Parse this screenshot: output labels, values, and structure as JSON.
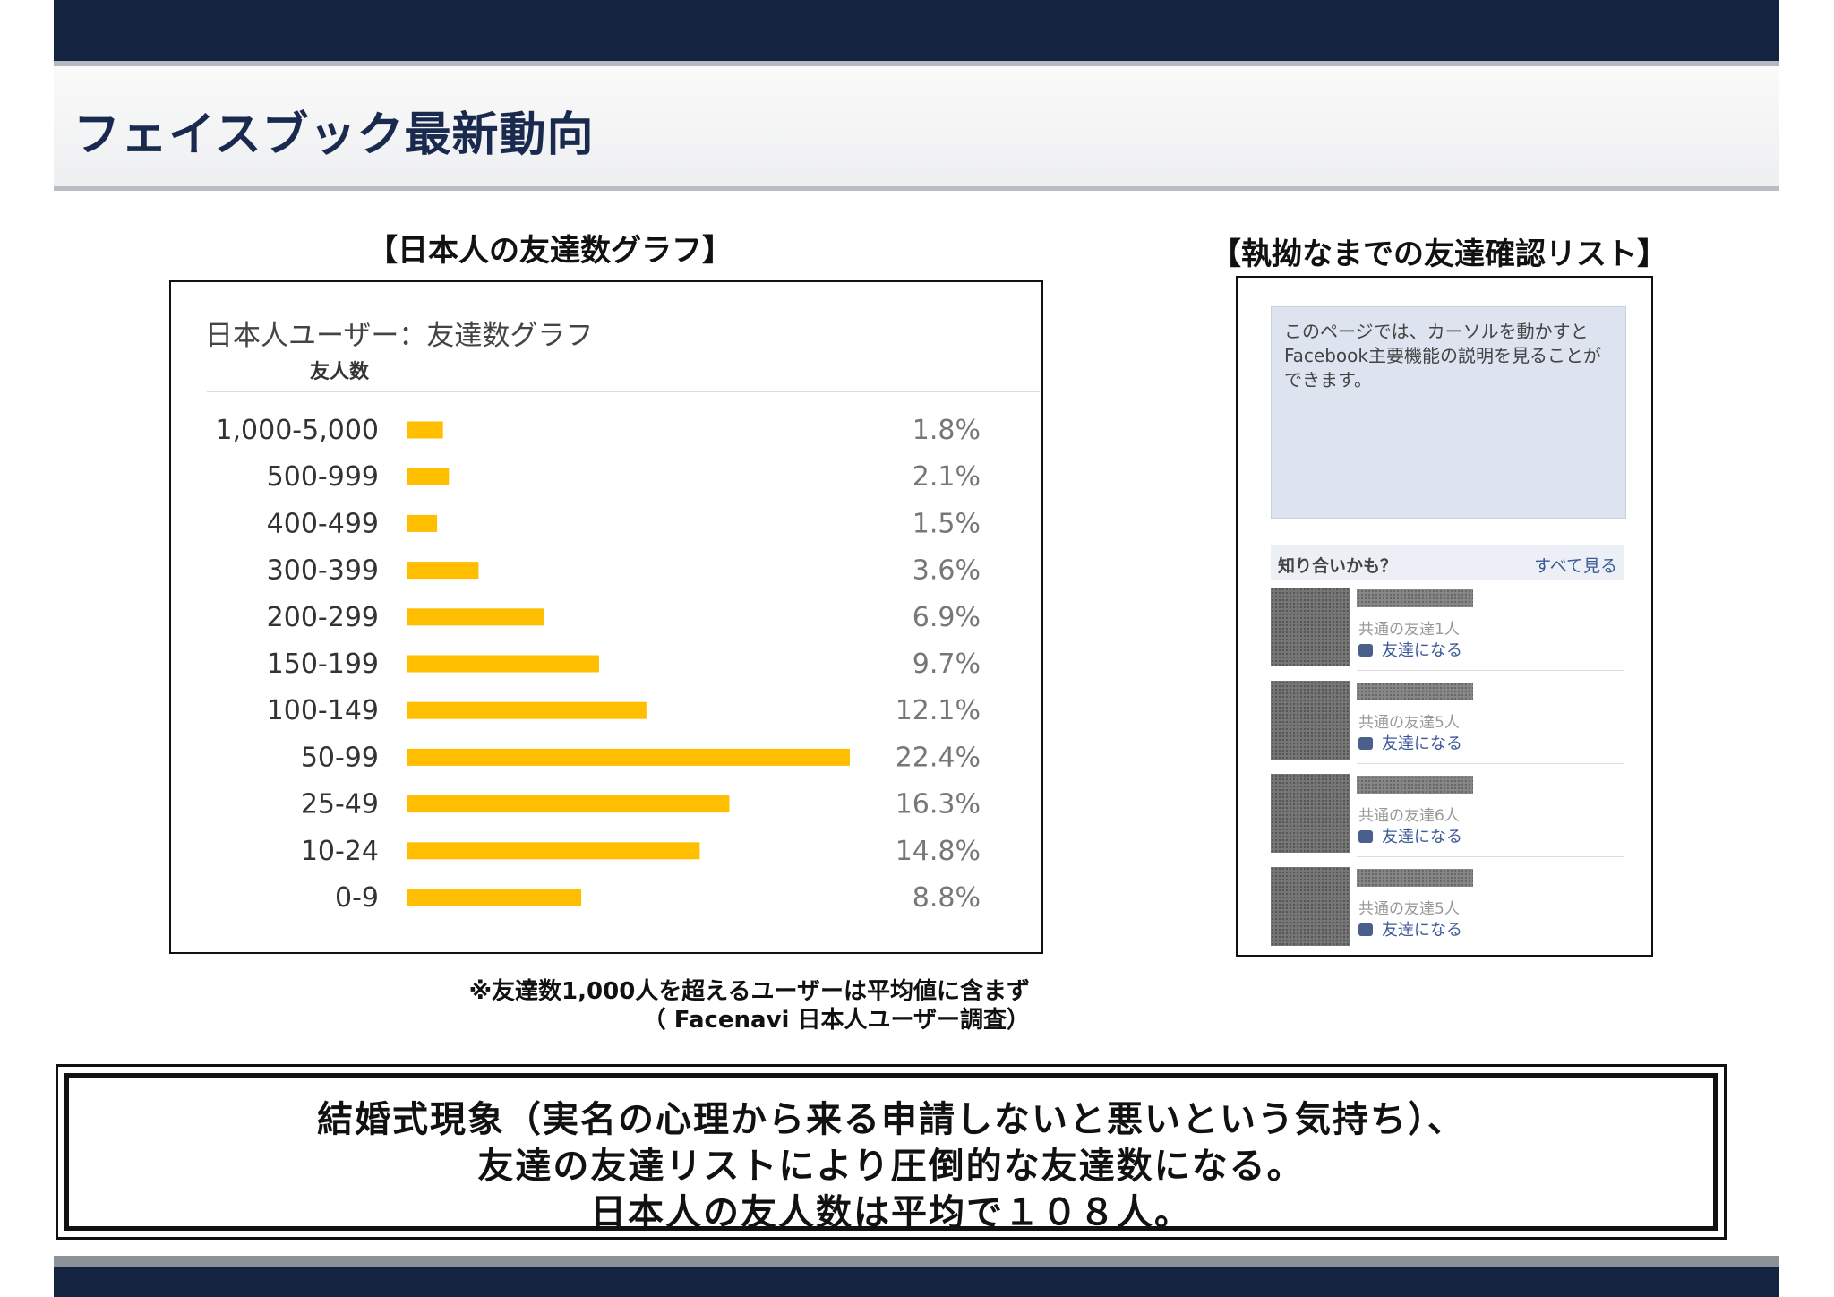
{
  "page": {
    "title": "フェイスブック最新動向"
  },
  "left_section": {
    "heading": "【日本人の友達数グラフ】"
  },
  "right_section": {
    "heading": "【執拗なまでの友達確認リスト】"
  },
  "chart_data": {
    "type": "bar",
    "orientation": "horizontal",
    "title": "日本人ユーザー：友達数グラフ",
    "ylabel": "友人数",
    "xlabel": "",
    "categories": [
      "1,000-5,000",
      "500-999",
      "400-499",
      "300-399",
      "200-299",
      "150-199",
      "100-149",
      "50-99",
      "25-49",
      "10-24",
      "0-9"
    ],
    "values": [
      1.8,
      2.1,
      1.5,
      3.6,
      6.9,
      9.7,
      12.1,
      22.4,
      16.3,
      14.8,
      8.8
    ],
    "value_labels": [
      "1.8%",
      "2.1%",
      "1.5%",
      "3.6%",
      "6.9%",
      "9.7%",
      "12.1%",
      "22.4%",
      "16.3%",
      "14.8%",
      "8.8%"
    ],
    "unit": "%",
    "xlim": [
      0,
      22.4
    ],
    "bar_color": "#ffbe00",
    "grid": false
  },
  "friend_panel": {
    "info_text": "このページでは、カーソルを動かすとFacebook主要機能の説明を見ることができます。",
    "suggest_label": "知り合いかも？",
    "see_all_label": "すべて見る",
    "items": [
      {
        "mutual": "共通の友達1人",
        "add_label": "友達になる"
      },
      {
        "mutual": "共通の友達5人",
        "add_label": "友達になる"
      },
      {
        "mutual": "共通の友達6人",
        "add_label": "友達になる"
      },
      {
        "mutual": "共通の友達5人",
        "add_label": "友達になる"
      }
    ]
  },
  "notes": {
    "line1": "※友達数1,000人を超えるユーザーは平均値に含まず",
    "line2": "（ Facenavi 日本人ユーザー調査）"
  },
  "conclusion": {
    "line1": "結婚式現象（実名の心理から来る申請しないと悪いという気持ち）、",
    "line2": "友達の友達リストにより圧倒的な友達数になる。",
    "line3": "日本人の友人数は平均で１０８人。"
  },
  "colors": {
    "header_navy": "#142340",
    "title_text": "#1a2a4e",
    "bar": "#ffbe00",
    "link": "#3b5998"
  }
}
